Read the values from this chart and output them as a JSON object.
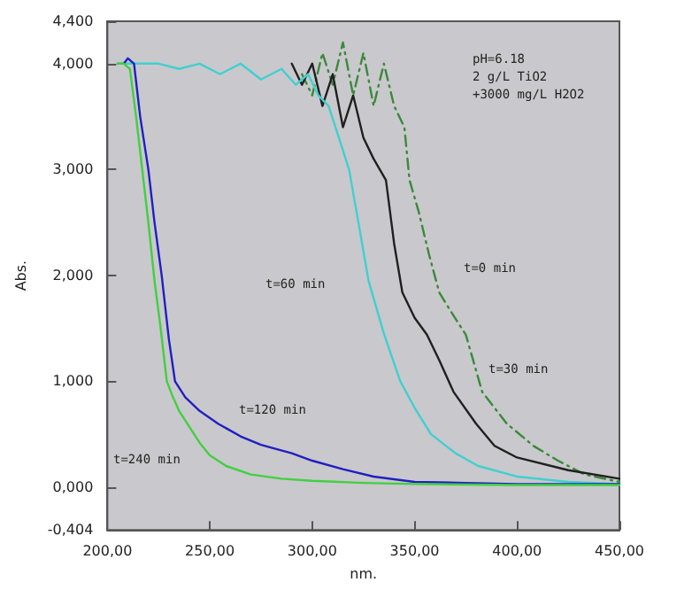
{
  "chart_data": {
    "type": "line",
    "xlabel": "nm.",
    "ylabel": "Abs.",
    "xlim": [
      200,
      450
    ],
    "xticks": [
      {
        "value": 200,
        "label": "200,00"
      },
      {
        "value": 250,
        "label": "250,00"
      },
      {
        "value": 300,
        "label": "300,00"
      },
      {
        "value": 350,
        "label": "350,00"
      },
      {
        "value": 400,
        "label": "400,00"
      },
      {
        "value": 450,
        "label": "450,00"
      }
    ],
    "ylim": [
      -0.404,
      4.4
    ],
    "yticks": [
      {
        "value": -0.404,
        "label": "-0,404"
      },
      {
        "value": 0,
        "label": "0,000"
      },
      {
        "value": 1,
        "label": "1,000"
      },
      {
        "value": 2,
        "label": "2,000"
      },
      {
        "value": 3,
        "label": "3,000"
      },
      {
        "value": 4,
        "label": "4,000"
      },
      {
        "value": 4.4,
        "label": "4,400"
      }
    ],
    "grid": false,
    "marker": "none",
    "series": [
      {
        "color": "#3a8a3a",
        "line_style": "dashed",
        "x": [
          295,
          300,
          305,
          310,
          315,
          320,
          325,
          330,
          335,
          340,
          345,
          347.5,
          352,
          357,
          362,
          368,
          375,
          383,
          395,
          408,
          420,
          433,
          450
        ],
        "values": [
          3.9,
          3.7,
          4.1,
          3.8,
          4.2,
          3.7,
          4.1,
          3.6,
          4.0,
          3.6,
          3.4,
          2.9,
          2.6,
          2.2,
          1.84,
          1.65,
          1.44,
          0.9,
          0.6,
          0.39,
          0.25,
          0.12,
          0.05
        ]
      },
      {
        "color": "#202020",
        "line_style": "solid",
        "x": [
          290,
          295,
          300,
          305,
          310,
          315,
          320,
          325,
          330,
          336,
          340,
          344,
          350,
          356,
          362,
          369,
          380,
          389,
          400,
          425,
          450
        ],
        "values": [
          4.0,
          3.8,
          4.0,
          3.6,
          3.9,
          3.4,
          3.7,
          3.3,
          3.1,
          2.9,
          2.3,
          1.84,
          1.6,
          1.44,
          1.2,
          0.9,
          0.6,
          0.39,
          0.28,
          0.16,
          0.08
        ]
      },
      {
        "color": "#40d0d0",
        "line_style": "solid",
        "x": [
          205,
          215,
          225,
          235,
          245,
          255,
          265,
          275,
          285,
          292,
          298,
          303,
          308,
          313,
          318,
          323,
          327.5,
          335,
          343,
          350,
          358,
          370,
          381,
          400,
          425,
          450
        ],
        "values": [
          4.0,
          4.0,
          4.0,
          3.95,
          4.0,
          3.9,
          4.0,
          3.85,
          3.95,
          3.8,
          3.9,
          3.7,
          3.6,
          3.3,
          3.0,
          2.45,
          1.95,
          1.45,
          1.0,
          0.75,
          0.5,
          0.32,
          0.2,
          0.1,
          0.05,
          0.03
        ]
      },
      {
        "color": "#2020c0",
        "line_style": "solid",
        "x": [
          208,
          210,
          213,
          216,
          220,
          223,
          226.5,
          230,
          233,
          238,
          245,
          254,
          265,
          275,
          290,
          300,
          315,
          330,
          350,
          375,
          400,
          450
        ],
        "values": [
          4.0,
          4.05,
          4.0,
          3.5,
          3.0,
          2.5,
          2.0,
          1.4,
          1.0,
          0.85,
          0.72,
          0.6,
          0.48,
          0.4,
          0.32,
          0.25,
          0.17,
          0.1,
          0.05,
          0.04,
          0.03,
          0.03
        ]
      },
      {
        "color": "#40d040",
        "line_style": "solid",
        "x": [
          205,
          208,
          211,
          214,
          217,
          220,
          223,
          226,
          229,
          232,
          235,
          239,
          245,
          250,
          258,
          270,
          285,
          300,
          325,
          350,
          400,
          450
        ],
        "values": [
          4.0,
          4.0,
          3.95,
          3.5,
          3.0,
          2.5,
          1.95,
          1.5,
          1.0,
          0.85,
          0.72,
          0.6,
          0.42,
          0.3,
          0.2,
          0.12,
          0.08,
          0.06,
          0.04,
          0.03,
          0.02,
          0.02
        ]
      }
    ],
    "annotations": [
      "pH=6.18",
      "2 g/L TiO2",
      "+3000 mg/L H2O2",
      "t=0 min",
      "t=30 min",
      "t=60 min",
      "t=120 min",
      "t=240 min"
    ]
  }
}
